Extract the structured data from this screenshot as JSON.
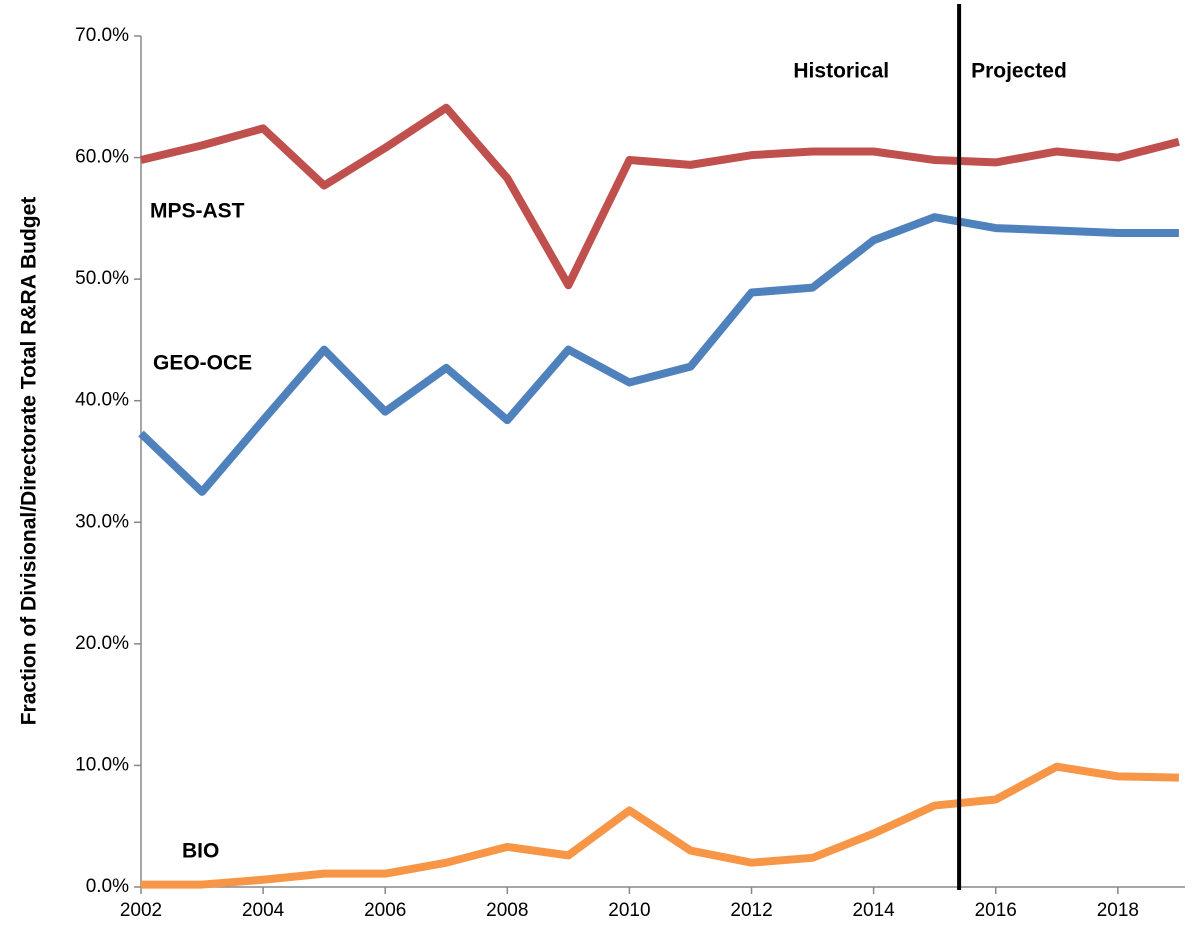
{
  "chart_data": {
    "type": "line",
    "y_label": "Fraction of Divisional/Directorate Total R&RA Budget",
    "x": [
      2002,
      2003,
      2004,
      2005,
      2006,
      2007,
      2008,
      2009,
      2010,
      2011,
      2012,
      2013,
      2014,
      2015,
      2016,
      2017,
      2018,
      2019
    ],
    "series": [
      {
        "name": "MPS-AST",
        "color": "#c0504d",
        "values": [
          59.8,
          61.0,
          62.4,
          57.7,
          60.8,
          64.1,
          58.3,
          49.5,
          59.8,
          59.4,
          60.2,
          60.5,
          60.5,
          59.8,
          59.6,
          60.5,
          60.0,
          61.3
        ]
      },
      {
        "name": "GEO-OCE",
        "color": "#4f81bd",
        "values": [
          37.3,
          32.5,
          38.4,
          44.2,
          39.1,
          42.7,
          38.4,
          44.2,
          41.5,
          42.8,
          48.9,
          49.3,
          53.2,
          55.1,
          54.2,
          54.0,
          53.8,
          53.8
        ]
      },
      {
        "name": "BIO",
        "color": "#f79646",
        "values": [
          0.2,
          0.2,
          0.6,
          1.1,
          1.1,
          2.0,
          3.3,
          2.6,
          6.3,
          3.0,
          2.0,
          2.4,
          4.4,
          6.7,
          7.2,
          9.9,
          9.1,
          9.0
        ]
      }
    ],
    "xlim": [
      2002,
      2019.1
    ],
    "xticks": [
      2002,
      2004,
      2006,
      2008,
      2010,
      2012,
      2014,
      2016,
      2018
    ],
    "ylim": [
      0,
      70
    ],
    "yticks": [
      {
        "value": 0,
        "label": "0.0%"
      },
      {
        "value": 10,
        "label": "10.0%"
      },
      {
        "value": 20,
        "label": "20.0%"
      },
      {
        "value": 30,
        "label": "30.0%"
      },
      {
        "value": 40,
        "label": "40.0%"
      },
      {
        "value": 50,
        "label": "50.0%"
      },
      {
        "value": 60,
        "label": "60.0%"
      },
      {
        "value": 70,
        "label": "70.0%"
      }
    ],
    "grid": false,
    "divider_x": 2015.4,
    "annotations": [
      "Historical",
      "Projected"
    ]
  }
}
